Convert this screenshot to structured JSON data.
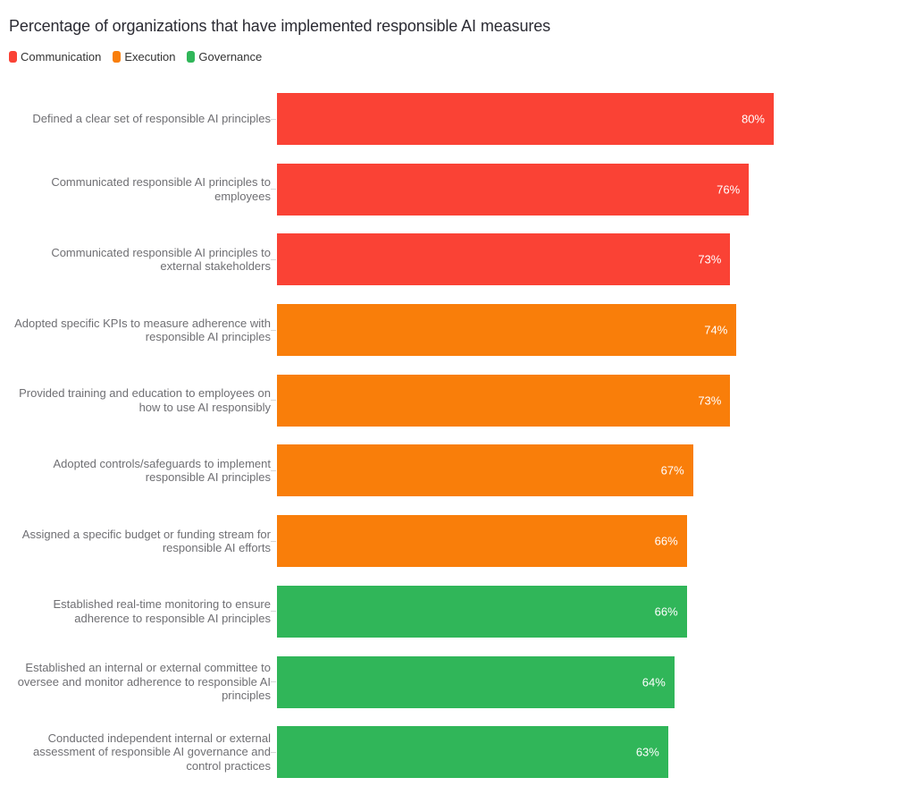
{
  "chart_data": {
    "type": "bar",
    "orientation": "horizontal",
    "title": "Percentage of organizations that have implemented responsible AI measures",
    "unit": "%",
    "xlim": [
      0,
      100
    ],
    "grid": false,
    "legend_position": "top-left",
    "categories": [
      "Defined a clear set of responsible AI principles",
      "Communicated responsible AI principles to employees",
      "Communicated responsible AI principles to external stakeholders",
      "Adopted specific KPIs to measure adherence with responsible AI principles",
      "Provided training and education to employees on how to use AI responsibly",
      "Adopted controls/safeguards to implement responsible AI principles",
      "Assigned a specific budget or funding stream for responsible AI efforts",
      "Established real-time monitoring to ensure adherence to responsible AI principles",
      "Established an internal or external committee to oversee and monitor adherence to responsible AI principles",
      "Conducted independent internal or external assessment of responsible AI governance and control practices"
    ],
    "values": [
      80,
      76,
      73,
      74,
      73,
      67,
      66,
      66,
      64,
      63
    ],
    "value_labels": [
      "80%",
      "76%",
      "73%",
      "74%",
      "73%",
      "67%",
      "66%",
      "66%",
      "64%",
      "63%"
    ],
    "groups": [
      "Communication",
      "Communication",
      "Communication",
      "Execution",
      "Execution",
      "Execution",
      "Execution",
      "Governance",
      "Governance",
      "Governance"
    ],
    "colors": {
      "Communication": "#fa4235",
      "Execution": "#f97e0a",
      "Governance": "#30b659"
    },
    "series": [
      {
        "name": "Communication",
        "color": "#fa4235",
        "items": [
          {
            "label": "Defined a clear set of responsible AI principles",
            "value": 80
          },
          {
            "label": "Communicated responsible AI principles to employees",
            "value": 76
          },
          {
            "label": "Communicated responsible AI principles to external stakeholders",
            "value": 73
          }
        ]
      },
      {
        "name": "Execution",
        "color": "#f97e0a",
        "items": [
          {
            "label": "Adopted specific KPIs to measure adherence with responsible AI principles",
            "value": 74
          },
          {
            "label": "Provided training and education to employees on how to use AI responsibly",
            "value": 73
          },
          {
            "label": "Adopted controls/safeguards to implement responsible AI principles",
            "value": 67
          },
          {
            "label": "Assigned a specific budget or funding stream for responsible AI efforts",
            "value": 66
          }
        ]
      },
      {
        "name": "Governance",
        "color": "#30b659",
        "items": [
          {
            "label": "Established real-time monitoring to ensure adherence to responsible AI principles",
            "value": 66
          },
          {
            "label": "Established an internal or external committee to oversee and monitor adherence to responsible AI principles",
            "value": 64
          },
          {
            "label": "Conducted independent internal or external assessment of responsible AI governance and control practices",
            "value": 63
          }
        ]
      }
    ]
  }
}
